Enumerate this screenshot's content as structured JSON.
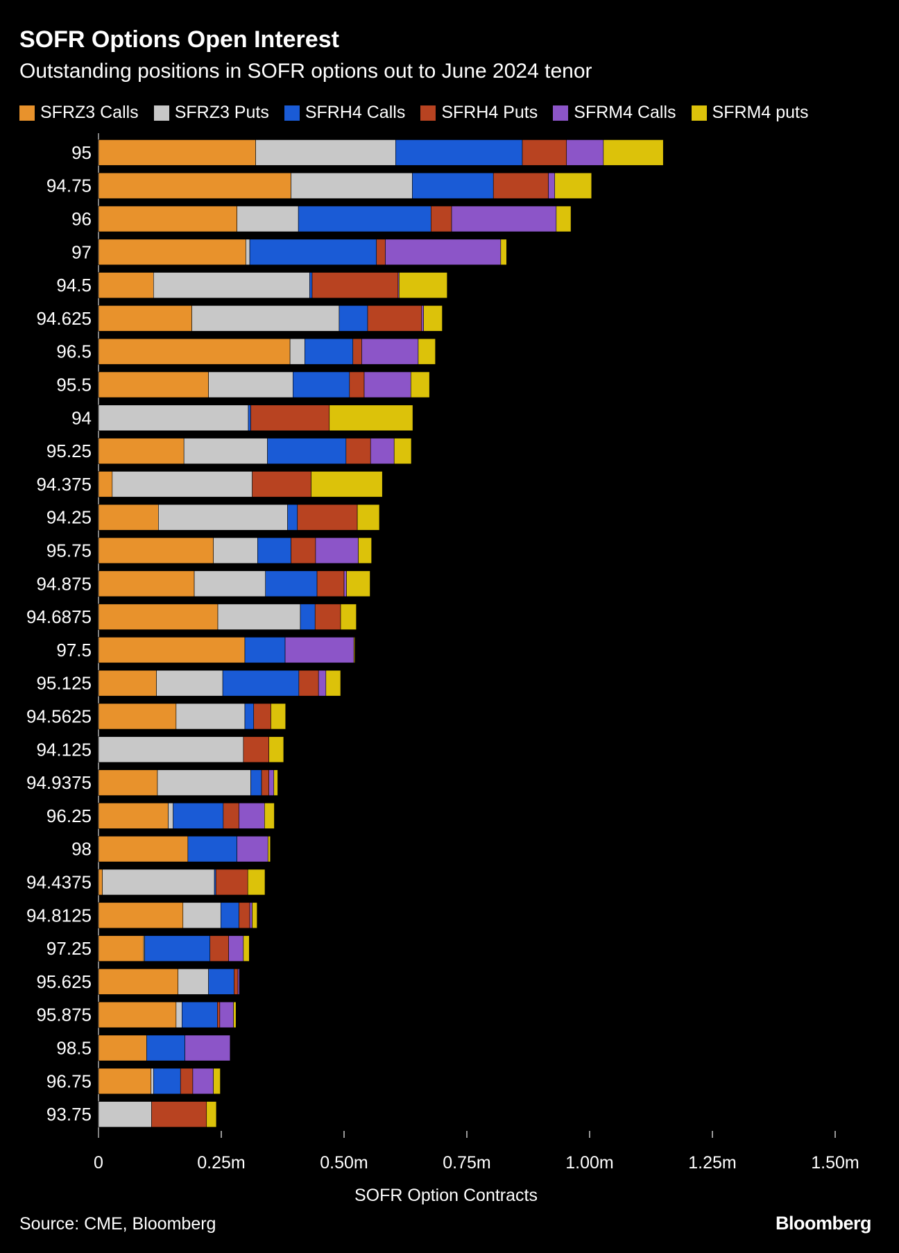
{
  "header": {
    "title": "SOFR Options Open Interest",
    "subtitle": "Outstanding positions in SOFR options out to June 2024 tenor"
  },
  "footer": {
    "source": "Source: CME, Bloomberg",
    "brand": "Bloomberg"
  },
  "chart_data": {
    "type": "bar",
    "orientation": "horizontal",
    "stacked": true,
    "title": "SOFR Options Open Interest",
    "subtitle": "Outstanding positions in SOFR options out to June 2024 tenor",
    "xlabel": "SOFR Option Contracts",
    "ylabel": "",
    "xlim": [
      0,
      1500000
    ],
    "xticks": [
      0,
      250000,
      500000,
      750000,
      1000000,
      1250000,
      1500000
    ],
    "xtick_labels": [
      "0",
      "0.25m",
      "0.50m",
      "0.75m",
      "1.00m",
      "1.25m",
      "1.50m"
    ],
    "legend_position": "top-left",
    "categories": [
      "95",
      "94.75",
      "96",
      "97",
      "94.5",
      "94.625",
      "96.5",
      "95.5",
      "94",
      "95.25",
      "94.375",
      "94.25",
      "95.75",
      "94.875",
      "94.6875",
      "97.5",
      "95.125",
      "94.5625",
      "94.125",
      "94.9375",
      "96.25",
      "98",
      "94.4375",
      "94.8125",
      "97.25",
      "95.625",
      "95.875",
      "98.5",
      "96.75",
      "93.75"
    ],
    "series": [
      {
        "name": "SFRZ3 Calls",
        "color": "#e8922c",
        "values": [
          320000,
          392000,
          282000,
          300000,
          112000,
          190000,
          390000,
          224000,
          0,
          174000,
          28000,
          122000,
          234000,
          195000,
          243000,
          298000,
          118000,
          158000,
          0,
          120000,
          142000,
          182000,
          8000,
          172000,
          92000,
          162000,
          158000,
          98000,
          107000,
          0
        ]
      },
      {
        "name": "SFRZ3 Puts",
        "color": "#c8c8c8",
        "values": [
          285000,
          247000,
          125000,
          8000,
          318000,
          300000,
          30000,
          172000,
          305000,
          170000,
          285000,
          263000,
          90000,
          145000,
          168000,
          0,
          135000,
          140000,
          295000,
          190000,
          10000,
          0,
          228000,
          77000,
          2000,
          62000,
          12000,
          0,
          5000,
          108000
        ]
      },
      {
        "name": "SFRH4 Calls",
        "color": "#1a5bd6",
        "values": [
          258000,
          165000,
          270000,
          258000,
          5000,
          58000,
          98000,
          115000,
          5000,
          160000,
          0,
          20000,
          68000,
          105000,
          30000,
          82000,
          155000,
          18000,
          0,
          22000,
          102000,
          100000,
          3000,
          37000,
          133000,
          52000,
          72000,
          78000,
          55000,
          0
        ]
      },
      {
        "name": "SFRH4 Puts",
        "color": "#b84321",
        "values": [
          90000,
          112000,
          42000,
          18000,
          175000,
          110000,
          18000,
          30000,
          160000,
          50000,
          120000,
          122000,
          50000,
          55000,
          52000,
          0,
          40000,
          35000,
          52000,
          15000,
          32000,
          0,
          65000,
          22000,
          38000,
          8000,
          5000,
          0,
          25000,
          112000
        ]
      },
      {
        "name": "SFRM4 Calls",
        "color": "#8c55c8",
        "values": [
          75000,
          13000,
          213000,
          235000,
          2000,
          4000,
          115000,
          95000,
          0,
          48000,
          0,
          0,
          87000,
          5000,
          0,
          140000,
          15000,
          0,
          0,
          10000,
          52000,
          63000,
          0,
          5000,
          30000,
          3000,
          28000,
          92000,
          42000,
          0
        ]
      },
      {
        "name": "SFRM4 puts",
        "color": "#dcc20a",
        "values": [
          122000,
          75000,
          30000,
          12000,
          98000,
          38000,
          35000,
          38000,
          170000,
          35000,
          145000,
          45000,
          27000,
          48000,
          32000,
          2000,
          30000,
          30000,
          30000,
          8000,
          20000,
          5000,
          35000,
          10000,
          12000,
          0,
          5000,
          0,
          14000,
          20000
        ]
      }
    ]
  }
}
